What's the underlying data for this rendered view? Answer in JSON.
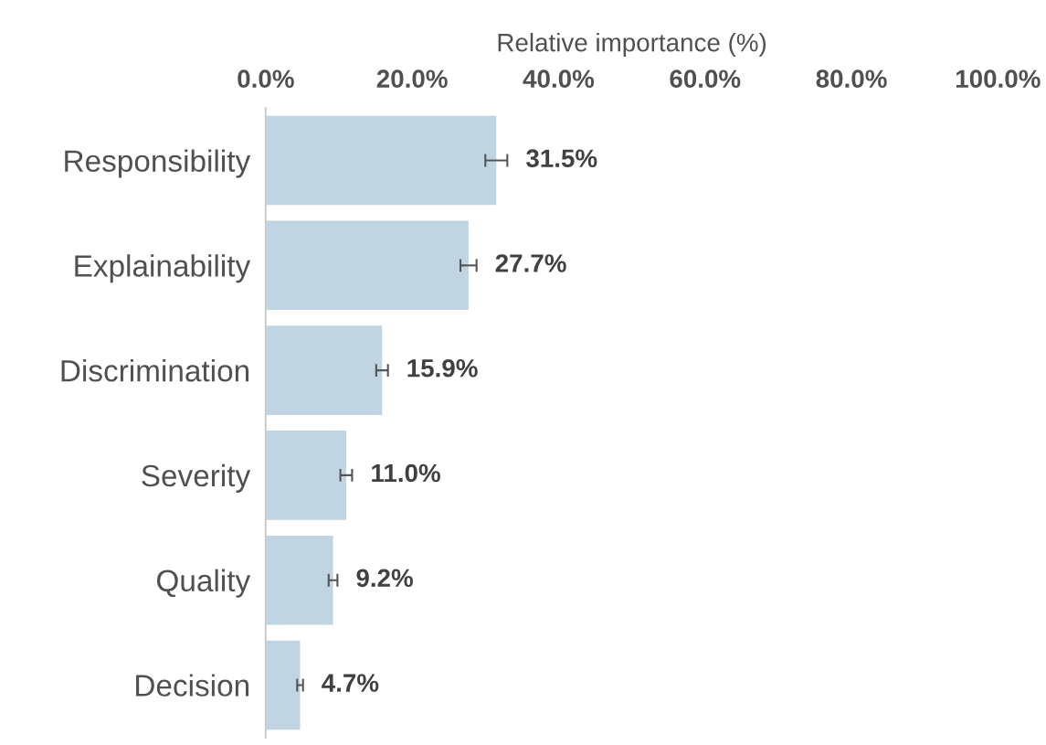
{
  "chart_data": {
    "type": "bar",
    "orientation": "horizontal",
    "xlabel": "Relative importance (%)",
    "categories": [
      "Responsibility",
      "Explainability",
      "Discrimination",
      "Severity",
      "Quality",
      "Decision"
    ],
    "values": [
      31.5,
      27.7,
      15.9,
      11.0,
      9.2,
      4.7
    ],
    "errors": [
      1.5,
      1.1,
      0.8,
      0.8,
      0.6,
      0.4
    ],
    "value_labels": [
      "31.5%",
      "27.7%",
      "15.9%",
      "11.0%",
      "9.2%",
      "4.7%"
    ],
    "color": "#c0d4e2",
    "xlim": [
      0,
      100
    ],
    "xticks": [
      {
        "value": 0,
        "label": "0.0%"
      },
      {
        "value": 20,
        "label": "20.0%"
      },
      {
        "value": 40,
        "label": "40.0%"
      },
      {
        "value": 60,
        "label": "60.0%"
      },
      {
        "value": 80,
        "label": "80.0%"
      },
      {
        "value": 100,
        "label": "100.0%"
      }
    ],
    "grid": false,
    "legend": false
  }
}
